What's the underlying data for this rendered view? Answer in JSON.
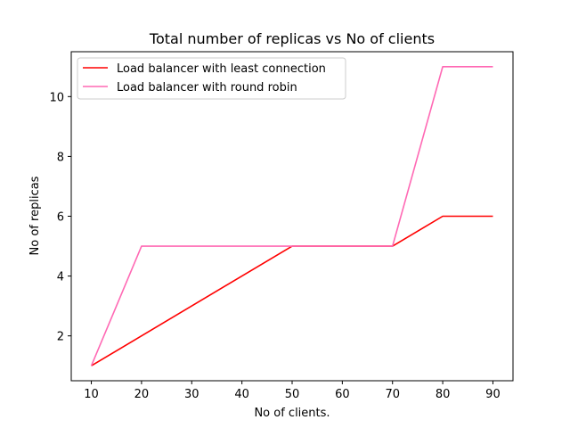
{
  "chart_data": {
    "type": "line",
    "title": "Total number of replicas vs No of clients",
    "xlabel": "No of clients.",
    "ylabel": "No of replicas",
    "x": [
      10,
      20,
      30,
      40,
      50,
      60,
      70,
      80,
      90
    ],
    "xlim": [
      6,
      94
    ],
    "ylim": [
      0.5,
      11.5
    ],
    "xticks": [
      10,
      20,
      30,
      40,
      50,
      60,
      70,
      80,
      90
    ],
    "yticks": [
      2,
      4,
      6,
      8,
      10
    ],
    "grid": false,
    "legend_position": "top-left",
    "series": [
      {
        "name": "Load balancer with least connection",
        "color": "#ff0000",
        "x": [
          10,
          50,
          70,
          80,
          90
        ],
        "values": [
          1,
          5,
          5,
          6,
          6
        ]
      },
      {
        "name": "Load balancer with round robin",
        "color": "#ff69b4",
        "x": [
          10,
          20,
          70,
          80,
          90
        ],
        "values": [
          1,
          5,
          5,
          11,
          11
        ]
      }
    ]
  }
}
